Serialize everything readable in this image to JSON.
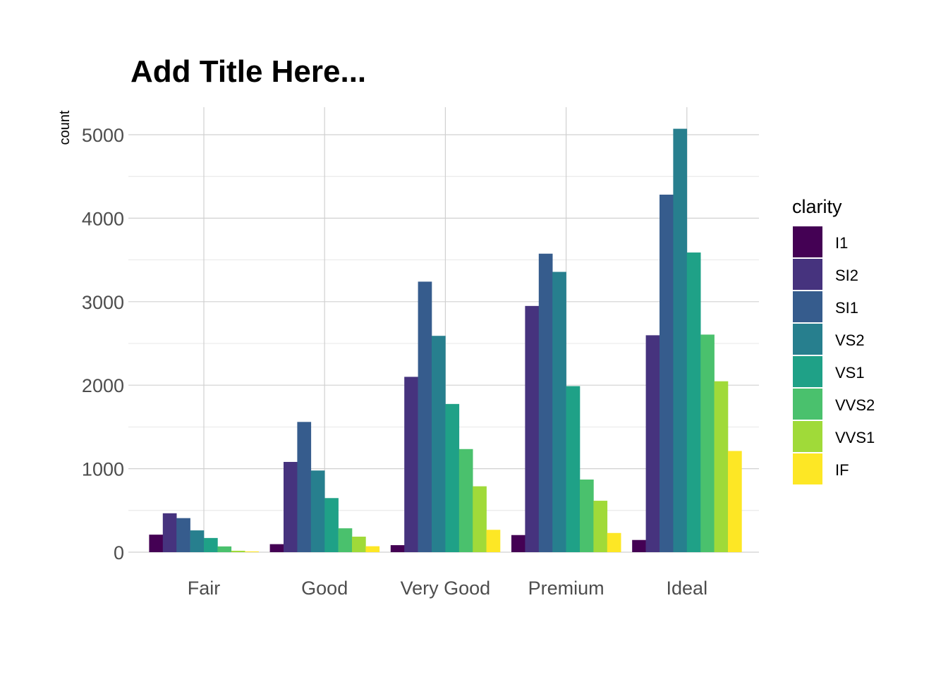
{
  "chart_data": {
    "type": "bar",
    "title": "Add Title Here...",
    "xlabel": "",
    "ylabel": "count",
    "ylim": [
      0,
      5350
    ],
    "yticks": [
      "0",
      "1000",
      "2000",
      "3000",
      "4000",
      "5000"
    ],
    "grid": true,
    "legend": {
      "title": "clarity",
      "placement": "right"
    },
    "categories": [
      "Fair",
      "Good",
      "Very Good",
      "Premium",
      "Ideal"
    ],
    "series": [
      {
        "name": "I1",
        "color": "#440154",
        "values": [
          210,
          96,
          84,
          205,
          146
        ]
      },
      {
        "name": "SI2",
        "color": "#46337e",
        "values": [
          466,
          1081,
          2100,
          2949,
          2598
        ]
      },
      {
        "name": "SI1",
        "color": "#365c8d",
        "values": [
          408,
          1560,
          3240,
          3575,
          4282
        ]
      },
      {
        "name": "VS2",
        "color": "#277f8e",
        "values": [
          261,
          978,
          2591,
          3357,
          5071
        ]
      },
      {
        "name": "VS1",
        "color": "#1fa187",
        "values": [
          170,
          648,
          1775,
          1989,
          3589
        ]
      },
      {
        "name": "VVS2",
        "color": "#4ac16d",
        "values": [
          69,
          286,
          1235,
          870,
          2606
        ]
      },
      {
        "name": "VVS1",
        "color": "#a0da39",
        "values": [
          17,
          186,
          789,
          616,
          2047
        ]
      },
      {
        "name": "IF",
        "color": "#fde725",
        "values": [
          9,
          71,
          268,
          230,
          1212
        ]
      }
    ]
  }
}
